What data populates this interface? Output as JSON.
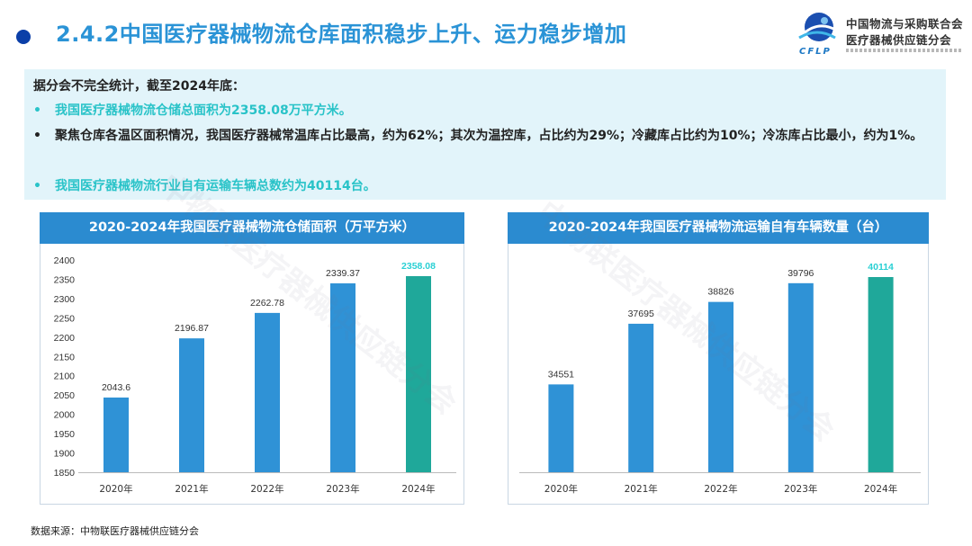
{
  "header": {
    "title": "2.4.2中国医疗器械物流仓库面积稳步上升、运力稳步增加"
  },
  "logo": {
    "abbr": "CFLP",
    "name_line1": "中国物流与采购联合会",
    "name_line2": "医疗器械供应链分会"
  },
  "summary": {
    "intro": "据分会不完全统计，截至2024年底：",
    "bullet": "•",
    "items": [
      "我国医疗器械物流仓储总面积为2358.08万平方米。",
      "聚焦仓库各温区面积情况，我国医疗器械常温库占比最高，约为62%；其次为温控库，占比约为29%；冷藏库占比约为10%；冷冻库占比最小，约为1%。",
      "我国医疗器械物流行业自有运输车辆总数约为40114台。"
    ]
  },
  "source": "数据来源：中物联医疗器械供应链分会",
  "watermark": "中物联医疗器械供应链分会",
  "colors": {
    "bar": "#2f92d6",
    "highlight": "#1fa89a",
    "highlight_label": "#2ad0d4",
    "header": "#2b8bd0"
  },
  "chart_data": [
    {
      "type": "bar",
      "title": "2020-2024年我国医疗器械物流仓储面积（万平方米）",
      "categories": [
        "2020年",
        "2021年",
        "2022年",
        "2023年",
        "2024年"
      ],
      "values": [
        2043.6,
        2196.87,
        2262.78,
        2339.37,
        2358.08
      ],
      "value_labels": [
        "2043.6",
        "2196.87",
        "2262.78",
        "2339.37",
        "2358.08"
      ],
      "ylim": [
        1850,
        2400
      ],
      "yticks": [
        "1850",
        "1900",
        "1950",
        "2000",
        "2050",
        "2100",
        "2150",
        "2200",
        "2250",
        "2300",
        "2350",
        "2400"
      ],
      "show_y_axis": true,
      "highlight_index": 4,
      "xlabel": "",
      "ylabel": ""
    },
    {
      "type": "bar",
      "title": "2020-2024年我国医疗器械物流运输自有车辆数量（台）",
      "categories": [
        "2020年",
        "2021年",
        "2022年",
        "2023年",
        "2024年"
      ],
      "values": [
        34551,
        37695,
        38826,
        39796,
        40114
      ],
      "value_labels": [
        "34551",
        "37695",
        "38826",
        "39796",
        "40114"
      ],
      "ylim": [
        30000,
        41000
      ],
      "show_y_axis": false,
      "highlight_index": 4,
      "xlabel": "",
      "ylabel": ""
    }
  ]
}
